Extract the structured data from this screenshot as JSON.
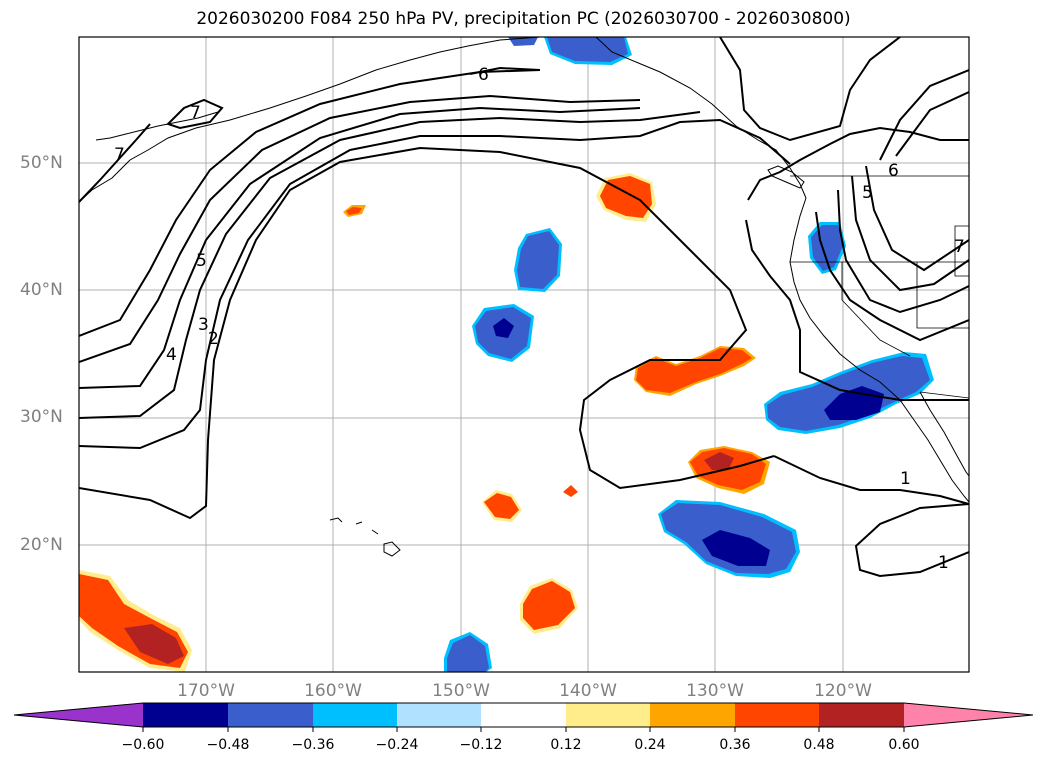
{
  "title": "2026030200 F084 250 hPa PV, precipitation PC (2026030700 - 2026030800)",
  "map": {
    "lat_labels": [
      "50°N",
      "40°N",
      "30°N",
      "20°N"
    ],
    "lon_labels": [
      "170°W",
      "160°W",
      "150°W",
      "140°W",
      "130°W",
      "120°W"
    ],
    "contour_labels": [
      "6",
      "7",
      "7",
      "5",
      "3",
      "4",
      "2",
      "5",
      "6",
      "7",
      "1",
      "1"
    ]
  },
  "colorbar": {
    "ticks": [
      "−0.60",
      "−0.48",
      "−0.36",
      "−0.24",
      "−0.12",
      "0.12",
      "0.24",
      "0.36",
      "0.48",
      "0.60"
    ],
    "colors": {
      "under": "#9933cc",
      "neg_060": "#000090",
      "neg_048": "#3a5fcd",
      "neg_036": "#00bfff",
      "neg_024": "#b0e2ff",
      "neutral": "#ffffff",
      "pos_012": "#ffec8b",
      "pos_024": "#ffa500",
      "pos_036": "#ff4500",
      "pos_048": "#b22222",
      "over": "#ff82ab"
    }
  }
}
